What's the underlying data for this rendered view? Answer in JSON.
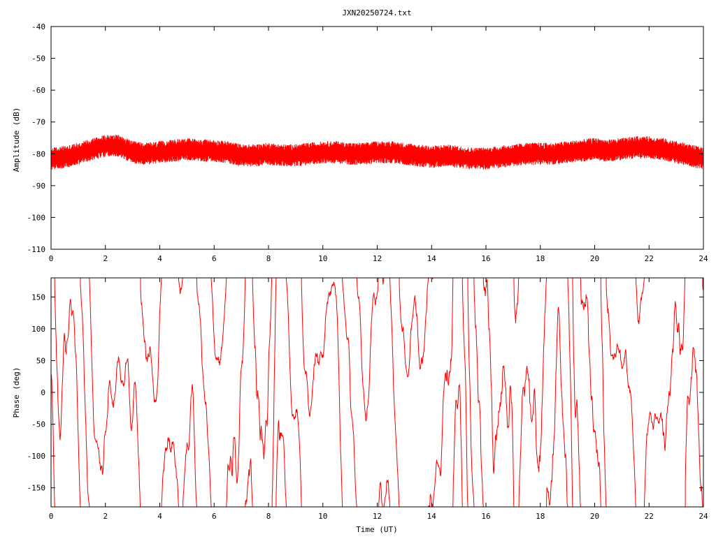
{
  "title": "JXN20250724.txt",
  "colors": {
    "series": "#ff0000",
    "axes": "#000000",
    "background": "#ffffff"
  },
  "chart_data": [
    {
      "type": "line",
      "title": "JXN20250724.txt",
      "xlabel": "",
      "ylabel": "Amplitude (dB)",
      "xlim": [
        0,
        24
      ],
      "ylim": [
        -110,
        -40
      ],
      "x_ticks": [
        0,
        2,
        4,
        6,
        8,
        10,
        12,
        14,
        16,
        18,
        20,
        22,
        24
      ],
      "y_ticks": [
        -40,
        -50,
        -60,
        -70,
        -80,
        -90,
        -100,
        -110
      ],
      "x_tick_labels": [
        "0",
        "2",
        "4",
        "6",
        "8",
        "10",
        "12",
        "14",
        "16",
        "18",
        "20",
        "22",
        "24"
      ],
      "y_tick_labels": [
        "-40",
        "-50",
        "-60",
        "-70",
        "-80",
        "-90",
        "-100",
        "-110"
      ],
      "grid": false,
      "series": [
        {
          "x": [
            0,
            0.5,
            1,
            1.5,
            2,
            2.5,
            3,
            3.5,
            4,
            4.5,
            5,
            5.5,
            6,
            6.5,
            7,
            7.5,
            8,
            8.5,
            9,
            9.5,
            10,
            10.5,
            11,
            11.5,
            12,
            12.5,
            13,
            13.5,
            14,
            14.5,
            15,
            15.5,
            16,
            16.5,
            17,
            17.5,
            18,
            18.5,
            19,
            19.5,
            20,
            20.5,
            21,
            21.5,
            22,
            22.5,
            23,
            23.5,
            24
          ],
          "y_center": [
            -81.5,
            -81,
            -80,
            -78.5,
            -77.5,
            -77.5,
            -79.5,
            -80,
            -79.5,
            -79,
            -78.5,
            -79,
            -79,
            -79.5,
            -80.5,
            -80.5,
            -80,
            -80.5,
            -80.5,
            -80,
            -79.5,
            -79.5,
            -80,
            -80,
            -79.5,
            -79.5,
            -80,
            -80.5,
            -81,
            -80.5,
            -81,
            -81.5,
            -81.5,
            -81,
            -80.5,
            -80,
            -80,
            -80,
            -79.5,
            -79,
            -78.5,
            -79,
            -78.5,
            -78,
            -78,
            -78.5,
            -79.5,
            -80.5,
            -81.5
          ],
          "y_spread": 2.5
        }
      ]
    },
    {
      "type": "line",
      "title": "",
      "xlabel": "Time (UT)",
      "ylabel": "Phase (deg)",
      "xlim": [
        0,
        24
      ],
      "ylim": [
        -180,
        180
      ],
      "x_ticks": [
        0,
        2,
        4,
        6,
        8,
        10,
        12,
        14,
        16,
        18,
        20,
        22,
        24
      ],
      "y_ticks": [
        -150,
        -100,
        -50,
        0,
        50,
        100,
        150
      ],
      "x_tick_labels": [
        "0",
        "2",
        "4",
        "6",
        "8",
        "10",
        "12",
        "14",
        "16",
        "18",
        "20",
        "22",
        "24"
      ],
      "y_tick_labels": [
        "-150",
        "-100",
        "-50",
        "0",
        "50",
        "100",
        "150"
      ],
      "grid": false,
      "series": [
        {
          "x_start": 0,
          "x_end": 24,
          "description": "phase wrapped between -180 and 180",
          "wrap": [
            -180,
            180
          ]
        }
      ]
    }
  ]
}
